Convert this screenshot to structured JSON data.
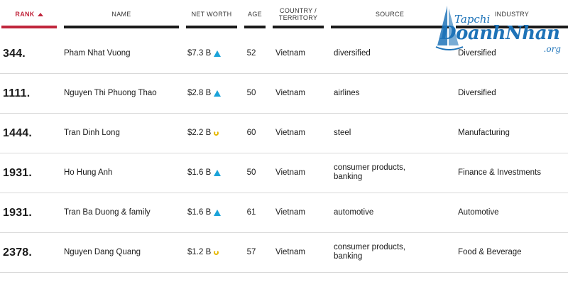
{
  "header": {
    "rank": "RANK",
    "name": "NAME",
    "net_worth": "NET WORTH",
    "age": "AGE",
    "country_line1": "COUNTRY /",
    "country_line2": "TERRITORY",
    "source": "SOURCE",
    "industry": "INDUSTRY"
  },
  "colors": {
    "accent": "#c0263c",
    "trend_up": "#1aa3d9",
    "trend_flat": "#e6b800",
    "logo": "#1e73b8"
  },
  "rows": [
    {
      "rank": "344.",
      "name": "Pham Nhat Vuong",
      "net_worth": "$7.3 B",
      "trend": "up-icon",
      "age": "52",
      "country": "Vietnam",
      "source_line1": "diversified",
      "source_line2": "",
      "industry": "Diversified"
    },
    {
      "rank": "1111.",
      "name": "Nguyen Thi Phuong Thao",
      "net_worth": "$2.8 B",
      "trend": "up-icon",
      "age": "50",
      "country": "Vietnam",
      "source_line1": "airlines",
      "source_line2": "",
      "industry": "Diversified"
    },
    {
      "rank": "1444.",
      "name": "Tran Dinh Long",
      "net_worth": "$2.2 B",
      "trend": "flat-icon",
      "age": "60",
      "country": "Vietnam",
      "source_line1": "steel",
      "source_line2": "",
      "industry": "Manufacturing"
    },
    {
      "rank": "1931.",
      "name": "Ho Hung Anh",
      "net_worth": "$1.6 B",
      "trend": "up-icon",
      "age": "50",
      "country": "Vietnam",
      "source_line1": "consumer products,",
      "source_line2": "banking",
      "industry": "Finance & Investments"
    },
    {
      "rank": "1931.",
      "name": "Tran Ba Duong & family",
      "net_worth": "$1.6 B",
      "trend": "up-icon",
      "age": "61",
      "country": "Vietnam",
      "source_line1": "automotive",
      "source_line2": "",
      "industry": "Automotive"
    },
    {
      "rank": "2378.",
      "name": "Nguyen Dang Quang",
      "net_worth": "$1.2 B",
      "trend": "flat-icon",
      "age": "57",
      "country": "Vietnam",
      "source_line1": "consumer products,",
      "source_line2": "banking",
      "industry": "Food & Beverage"
    }
  ],
  "watermark": {
    "line1": "Tapchi",
    "line2": "DoanhNhan",
    "line3": ".org"
  }
}
